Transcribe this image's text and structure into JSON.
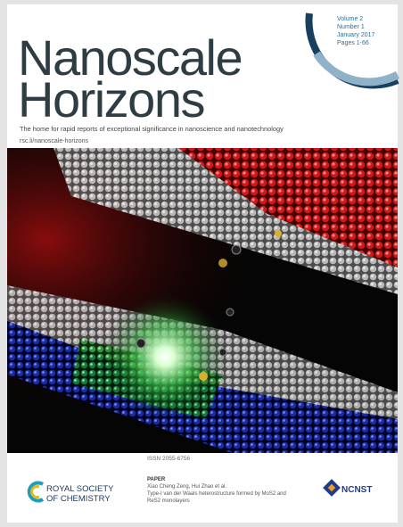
{
  "header": {
    "volume": "Volume 2",
    "number": "Number 1",
    "date": "January 2017",
    "pages": "Pages 1-66"
  },
  "title": {
    "line1": "Nanoscale",
    "line2": "Horizons"
  },
  "tagline": "The home for rapid reports of exceptional significance in nanoscience and nanotechnology",
  "url": "rsc.li/nanoscale-horizons",
  "issn": "ISSN 2055-6756",
  "footer": {
    "publisher": {
      "line1": "ROYAL SOCIETY",
      "line2": "OF CHEMISTRY"
    },
    "paper": {
      "label": "PAPER",
      "authors": "Xiao Cheng Zeng, Hui Zhao et al.",
      "title_line1": "Type-I van der Waals heterostructure formed by MoS2 and",
      "title_line2": "ReS2 monolayers"
    },
    "partner": "NCNST"
  }
}
